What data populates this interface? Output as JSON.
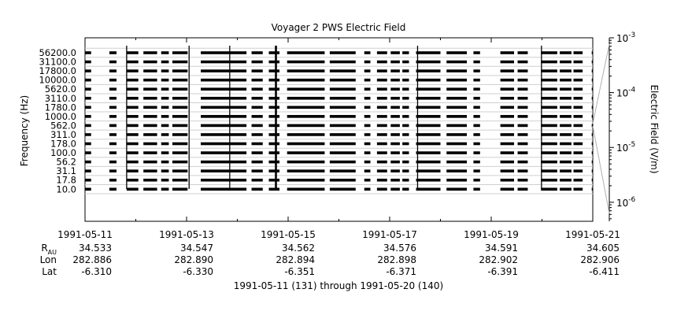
{
  "chart_data": {
    "type": "line",
    "title": "Voyager 2 PWS Electric Field",
    "ylabel": "Frequency (Hz)",
    "colorbar_label": "Electric Field (V/m)",
    "colorbar_scale": "log",
    "colorbar_range": [
      4.5e-07,
      0.001
    ],
    "colorbar_ticks": [
      {
        "base": "10",
        "exp": "-3",
        "value": 0.001
      },
      {
        "base": "10",
        "exp": "-4",
        "value": 0.0001
      },
      {
        "base": "10",
        "exp": "-5",
        "value": 1e-05
      },
      {
        "base": "10",
        "exp": "-6",
        "value": 1e-06
      }
    ],
    "channels": [
      "56200.0",
      "31100.0",
      "17800.0",
      "10000.0",
      "5620.0",
      "3110.0",
      "1780.0",
      "1000.0",
      "562.0",
      "311.0",
      "178.0",
      "100.0",
      "56.2",
      "31.1",
      "17.8",
      "10.0"
    ],
    "x_tick_labels": [
      "1991-05-11",
      "1991-05-13",
      "1991-05-15",
      "1991-05-17",
      "1991-05-19",
      "1991-05-21"
    ],
    "x_range_days": [
      0,
      10
    ],
    "data_segments_days": [
      [
        0.0,
        0.12
      ],
      [
        0.48,
        0.62
      ],
      [
        0.82,
        1.05
      ],
      [
        1.15,
        1.42
      ],
      [
        1.5,
        1.65
      ],
      [
        1.72,
        2.02
      ],
      [
        2.28,
        3.18
      ],
      [
        3.28,
        3.5
      ],
      [
        3.62,
        3.83
      ],
      [
        3.98,
        4.72
      ],
      [
        4.82,
        5.33
      ],
      [
        5.5,
        5.62
      ],
      [
        5.75,
        5.95
      ],
      [
        6.02,
        6.2
      ],
      [
        6.25,
        6.38
      ],
      [
        6.52,
        7.0
      ],
      [
        7.12,
        7.52
      ],
      [
        7.65,
        7.78
      ],
      [
        8.18,
        8.45
      ],
      [
        8.52,
        8.72
      ],
      [
        8.98,
        9.3
      ],
      [
        9.35,
        9.58
      ],
      [
        9.62,
        9.8
      ],
      [
        9.98,
        10.0
      ]
    ],
    "spikes_days": [
      0.82,
      2.05,
      2.85,
      3.75,
      3.77,
      6.55,
      8.99
    ],
    "ephemeris": {
      "rows": [
        {
          "label": "R",
          "sub": "AU",
          "values": [
            "34.533",
            "34.547",
            "34.562",
            "34.576",
            "34.591",
            "34.605"
          ]
        },
        {
          "label": "Lon",
          "sub": "",
          "values": [
            "282.886",
            "282.890",
            "282.894",
            "282.898",
            "282.902",
            "282.906"
          ]
        },
        {
          "label": "Lat",
          "sub": "",
          "values": [
            "-6.310",
            "-6.330",
            "-6.351",
            "-6.371",
            "-6.391",
            "-6.411"
          ]
        }
      ]
    },
    "footer": "1991-05-11 (131) through 1991-05-20 (140)"
  }
}
